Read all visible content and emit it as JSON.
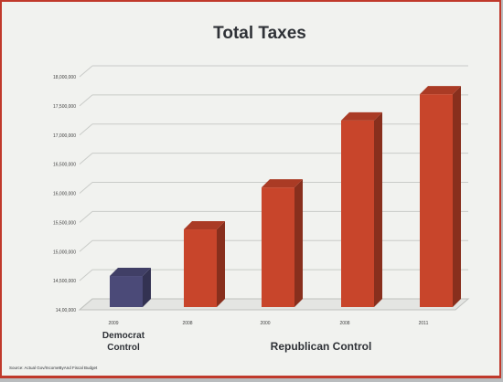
{
  "chart_data": {
    "type": "bar",
    "title": "Total Taxes",
    "categories": [
      "2009",
      "2008",
      "2000",
      "2008",
      "2011"
    ],
    "values": [
      14.58,
      15.38,
      16.1,
      17.25,
      17.7
    ],
    "yticks": [
      "14,00,000",
      "14,500,000",
      "15,000,000",
      "15,500,000",
      "16,000,000",
      "16,500,000",
      "17,000,000",
      "17,500,000",
      "18,000,000"
    ],
    "ylim": [
      14.0,
      18.0
    ],
    "colors": [
      "#4b4a78",
      "#c8452b",
      "#c8452b",
      "#c8452b",
      "#c8452b"
    ],
    "groups": [
      {
        "label": "Democrat Control"
      },
      {
        "label": "Republican Control"
      }
    ],
    "source": "Source: Actual Gov/IncomeByAnd Fiscal Budget",
    "grid": true,
    "legend": "none"
  }
}
